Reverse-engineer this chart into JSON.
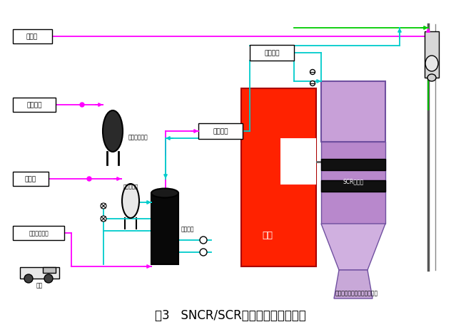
{
  "title": "图3   SNCR/SCR联合工艺脱硝流程图",
  "title_fontsize": 12,
  "bg_color": "#ffffff",
  "colors": {
    "boiler_red": "#ff2200",
    "scr_purple": "#b090c0",
    "tank_black": "#1a1a1a",
    "pipe_magenta": "#ff00ff",
    "pipe_cyan": "#00cccc",
    "pipe_green": "#00cc00",
    "box_border": "#000000",
    "box_fill": "#ffffff",
    "bg_color": "#ffffff",
    "text": "#000000"
  },
  "labels": {
    "cooler_fan": "冷却风",
    "compressed_air": "压缩空气",
    "compressed_tank": "压缩空气储罐",
    "process_water": "工艺水",
    "ammonia_evaporator": "氨气蒸发罐",
    "ammonia_system": "氨水制备系统",
    "ammonia_tank": "氨水储罐",
    "truck": "槽车",
    "metering_module": "计量模块",
    "distribution_module": "分配模块",
    "boiler": "锅炉",
    "scr_reactor": "SCR反应器",
    "note": "脱硝后烟气和吹灰进入除尘器"
  }
}
